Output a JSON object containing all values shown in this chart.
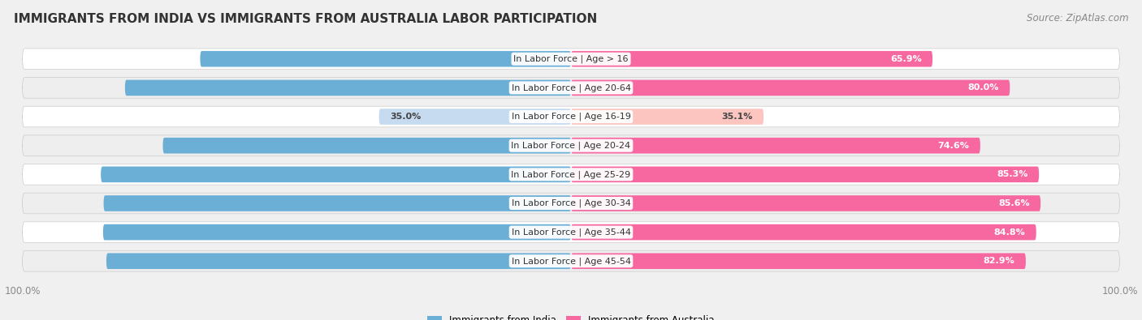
{
  "title": "IMMIGRANTS FROM INDIA VS IMMIGRANTS FROM AUSTRALIA LABOR PARTICIPATION",
  "source": "Source: ZipAtlas.com",
  "categories": [
    "In Labor Force | Age > 16",
    "In Labor Force | Age 20-64",
    "In Labor Force | Age 16-19",
    "In Labor Force | Age 20-24",
    "In Labor Force | Age 25-29",
    "In Labor Force | Age 30-34",
    "In Labor Force | Age 35-44",
    "In Labor Force | Age 45-54"
  ],
  "india_values": [
    67.6,
    81.3,
    35.0,
    74.4,
    85.7,
    85.2,
    85.3,
    84.7
  ],
  "australia_values": [
    65.9,
    80.0,
    35.1,
    74.6,
    85.3,
    85.6,
    84.8,
    82.9
  ],
  "india_color": "#6baed6",
  "india_color_light": "#c6dbef",
  "australia_color": "#f768a1",
  "australia_color_light": "#fcc5c0",
  "max_value": 100.0,
  "background_color": "#f0f0f0",
  "row_bg_even": "#ffffff",
  "row_bg_odd": "#eeeeee",
  "label_india": "Immigrants from India",
  "label_australia": "Immigrants from Australia",
  "title_fontsize": 11,
  "source_fontsize": 8.5,
  "axis_label_fontsize": 8.5,
  "bar_label_fontsize": 8,
  "category_fontsize": 8
}
